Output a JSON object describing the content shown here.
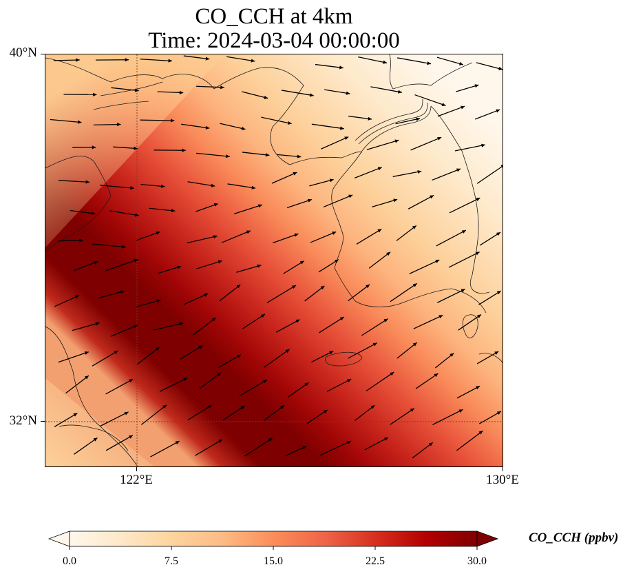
{
  "title": {
    "line1": "CO_CCH at 4km",
    "line2": "Time: 2024-03-04 00:00:00"
  },
  "map": {
    "lat_ticks": [
      "40°N",
      "32°N"
    ],
    "lon_ticks": [
      "122°E",
      "130°E"
    ],
    "lon_range": [
      120,
      130
    ],
    "lat_range": [
      31,
      40
    ]
  },
  "colorbar": {
    "label": "CO_CCH (ppbv)",
    "ticks": [
      "0.0",
      "7.5",
      "15.0",
      "22.5",
      "30.0"
    ],
    "range": [
      0,
      30
    ],
    "colormap": "OrRd",
    "colors": [
      "#fff7ec",
      "#fee8c8",
      "#fdd49e",
      "#fdbb84",
      "#fc8d59",
      "#ef6548",
      "#d7301f",
      "#b30000",
      "#7f0000"
    ]
  }
}
